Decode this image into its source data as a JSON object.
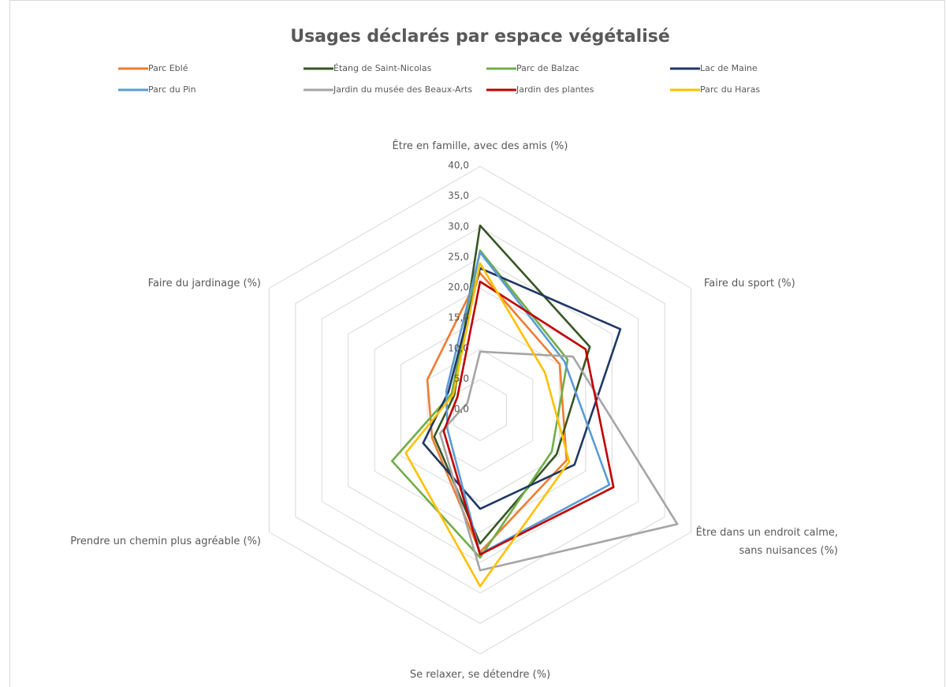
{
  "chart_data": {
    "type": "radar",
    "title": "Usages déclarés par espace végétalisé",
    "categories": [
      "Être en famille, avec des amis (%)",
      "Faire du sport (%)",
      "Être dans un endroit calme, sans nuisances (%)",
      "Se relaxer, se détendre (%)",
      "Prendre un chemin plus agréable (%)",
      "Faire du jardinage (%)"
    ],
    "rlim": [
      0,
      40
    ],
    "rticks": [
      {
        "value": 0,
        "label": "0,0"
      },
      {
        "value": 5,
        "label": "5,0"
      },
      {
        "value": 10,
        "label": "10,0"
      },
      {
        "value": 15,
        "label": "15,0"
      },
      {
        "value": 20,
        "label": "20,0"
      },
      {
        "value": 25,
        "label": "25,0"
      },
      {
        "value": 30,
        "label": "30,0"
      },
      {
        "value": 35,
        "label": "35,0"
      },
      {
        "value": 40,
        "label": "40,0"
      }
    ],
    "grid": true,
    "series": [
      {
        "name": "Parc Eblé",
        "color": "#ed7d31",
        "values": [
          22.5,
          15.1,
          16.4,
          23.3,
          9.1,
          10.0
        ]
      },
      {
        "name": "Étang de Saint-Nicolas",
        "color": "#375623",
        "values": [
          30.3,
          20.8,
          14.5,
          21.9,
          8.7,
          4.9
        ]
      },
      {
        "name": "Parc de Balzac",
        "color": "#70ad47",
        "values": [
          26.2,
          16.6,
          13.6,
          24.2,
          16.7,
          5.4
        ]
      },
      {
        "name": "Lac de Maine",
        "color": "#1f3864",
        "values": [
          23.3,
          26.6,
          17.9,
          16.2,
          10.8,
          6.0
        ]
      },
      {
        "name": "Parc du Pin",
        "color": "#5b9bd5",
        "values": [
          25.9,
          16.0,
          24.5,
          23.6,
          6.2,
          6.4
        ]
      },
      {
        "name": "Jardin du musée des Beaux-Arts",
        "color": "#a5a5a5",
        "values": [
          9.6,
          17.6,
          37.4,
          26.3,
          7.6,
          2.4
        ]
      },
      {
        "name": "Jardin des plantes",
        "color": "#c00000",
        "values": [
          21.1,
          20.0,
          25.3,
          23.7,
          6.9,
          4.3
        ]
      },
      {
        "name": "Parc du Haras",
        "color": "#ffc000",
        "values": [
          24.1,
          12.3,
          16.9,
          28.9,
          14.1,
          5.1
        ]
      }
    ]
  }
}
